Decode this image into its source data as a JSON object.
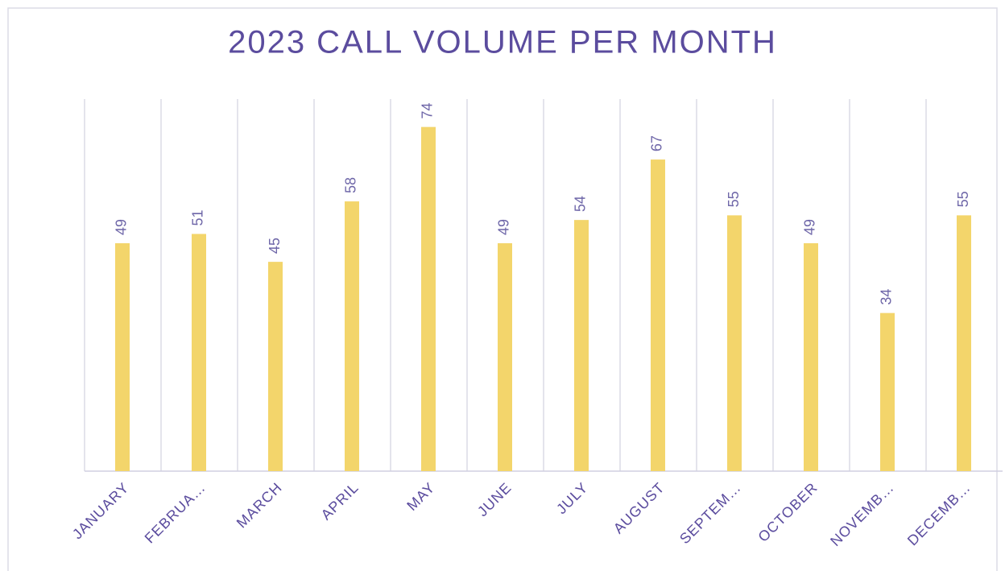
{
  "chart_data": {
    "type": "bar",
    "title": "2023 CALL VOLUME PER MONTH",
    "categories": [
      "JANUARY",
      "FEBRUA…",
      "MARCH",
      "APRIL",
      "MAY",
      "JUNE",
      "JULY",
      "AUGUST",
      "SEPTEM…",
      "OCTOBER",
      "NOVEMB…",
      "DECEMB…"
    ],
    "values": [
      49,
      51,
      45,
      58,
      74,
      49,
      54,
      67,
      55,
      49,
      34,
      55
    ],
    "color": "#f3d56b",
    "ylim": [
      0,
      80
    ],
    "grid": true
  }
}
